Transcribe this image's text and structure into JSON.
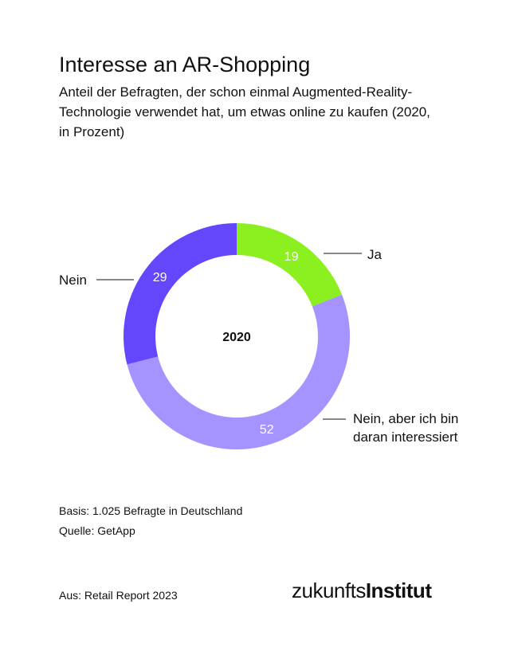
{
  "header": {
    "title": "Interesse an AR-Shopping",
    "subtitle": "Anteil der Befragten, der schon einmal Augmented-Reality-Technologie verwendet hat, um etwas online zu kaufen (2020, in Prozent)"
  },
  "chart_data": {
    "type": "pie",
    "variant": "donut",
    "center_label": "2020",
    "slices": [
      {
        "label": "Ja",
        "value": 19,
        "color": "#8cf020"
      },
      {
        "label": "Nein, aber ich bin daran interessiert",
        "value": 52,
        "color": "#a594ff"
      },
      {
        "label": "Nein",
        "value": 29,
        "color": "#6446fc"
      }
    ],
    "start_angle_deg": 0,
    "direction": "clockwise"
  },
  "labels": {
    "ja": "Ja",
    "nein": "Nein",
    "nein_aber": "Nein, aber ich bin daran interessiert"
  },
  "footer": {
    "basis": "Basis: 1.025 Befragte in Deutschland",
    "quelle": "Quelle: GetApp",
    "from": "Aus: Retail Report 2023",
    "logo_regular": "zukunfts",
    "logo_bold": "Institut"
  }
}
